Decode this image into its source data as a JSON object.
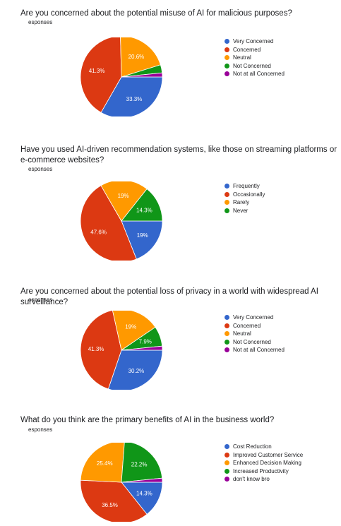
{
  "charts": [
    {
      "question": "Are you concerned about the potential misuse of AI for malicious purposes?",
      "responses_label": "esponses"
    },
    {
      "question": "Have you used AI-driven recommendation systems, like those on streaming platforms or e-commerce websites?",
      "responses_label": "esponses"
    },
    {
      "question": "Are you concerned about the potential loss of privacy in a world with widespread AI surveillance?",
      "responses_label": "esponses"
    },
    {
      "question": "What do you think are the primary benefits of AI in the business world?",
      "responses_label": "esponses"
    }
  ],
  "chart_data": [
    {
      "type": "pie",
      "title": "Are you concerned about the potential misuse of AI for malicious purposes?",
      "categories": [
        "Very Concerned",
        "Concerned",
        "Neutral",
        "Not Concerned",
        "Not at all Concerned"
      ],
      "values": [
        33.3,
        41.3,
        20.6,
        3.2,
        1.6
      ],
      "labels": [
        "33.3%",
        "41.3%",
        "20.6%",
        "",
        ""
      ],
      "colors": [
        "#3366cc",
        "#dc3912",
        "#ff9900",
        "#109618",
        "#990099"
      ],
      "legend": "right"
    },
    {
      "type": "pie",
      "title": "Have you used AI-driven recommendation systems, like those on streaming platforms or e-commerce websites?",
      "categories": [
        "Frequently",
        "Occasionally",
        "Rarely",
        "Never"
      ],
      "values": [
        19,
        47.6,
        19,
        14.3
      ],
      "labels": [
        "19%",
        "47.6%",
        "19%",
        "14.3%"
      ],
      "colors": [
        "#3366cc",
        "#dc3912",
        "#ff9900",
        "#109618"
      ],
      "legend": "right"
    },
    {
      "type": "pie",
      "title": "Are you concerned about the potential loss of privacy in a world with widespread AI surveillance?",
      "categories": [
        "Very Concerned",
        "Concerned",
        "Neutral",
        "Not Concerned",
        "Not at all Concerned"
      ],
      "values": [
        30.2,
        41.3,
        19,
        7.9,
        1.6
      ],
      "labels": [
        "30.2%",
        "41.3%",
        "19%",
        "7.9%",
        ""
      ],
      "colors": [
        "#3366cc",
        "#dc3912",
        "#ff9900",
        "#109618",
        "#990099"
      ],
      "legend": "right"
    },
    {
      "type": "pie",
      "title": "What do you think are the primary benefits of AI in the business world?",
      "categories": [
        "Cost Reduction",
        "Improved Customer Service",
        "Enhanced Decision Making",
        "Increased Productivity",
        "don't know bro"
      ],
      "values": [
        14.3,
        36.5,
        25.4,
        22.2,
        1.6
      ],
      "labels": [
        "14.3%",
        "36.5%",
        "25.4%",
        "22.2%",
        ""
      ],
      "colors": [
        "#3366cc",
        "#dc3912",
        "#ff9900",
        "#109618",
        "#990099"
      ],
      "legend": "right"
    }
  ]
}
